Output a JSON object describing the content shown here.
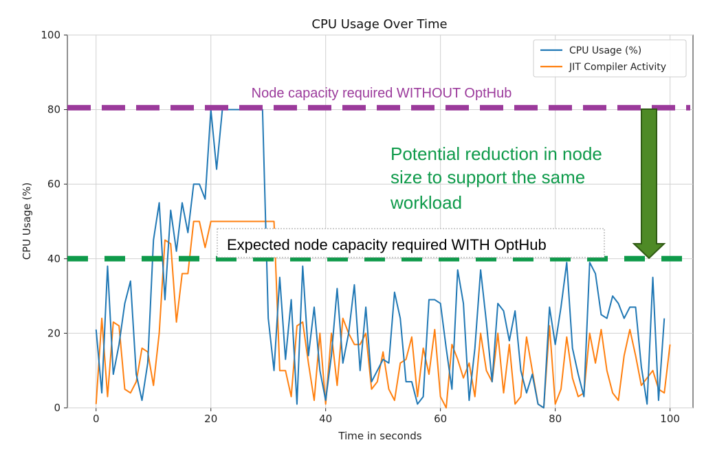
{
  "colors": {
    "cpu": "#1f77b4",
    "jit": "#ff7f0e",
    "purple": "#9b3a9b",
    "green": "#0e9a4a",
    "arrow": "#4e8a26"
  },
  "chart_data": {
    "type": "line",
    "title": "CPU Usage Over Time",
    "xlabel": "Time in seconds",
    "ylabel": "CPU Usage (%)",
    "xlim": [
      -5,
      104
    ],
    "ylim": [
      0,
      100
    ],
    "x_ticks": [
      0,
      20,
      40,
      60,
      80,
      100
    ],
    "y_ticks": [
      0,
      20,
      40,
      60,
      80,
      100
    ],
    "grid": true,
    "legend": "top-right",
    "series": [
      {
        "name": "CPU Usage (%)",
        "values": [
          21,
          4,
          38,
          9,
          17,
          28,
          34,
          9,
          2,
          12,
          45,
          55,
          29,
          53,
          42,
          55,
          47,
          60,
          60,
          56,
          80,
          64,
          80,
          80,
          80,
          80,
          80,
          80,
          80,
          80,
          24,
          10,
          35,
          13,
          29,
          1,
          38,
          14,
          27,
          10,
          2,
          14,
          32,
          12,
          20,
          33,
          10,
          27,
          7,
          10,
          13,
          12,
          31,
          24,
          7,
          7,
          1,
          3,
          29,
          29,
          28,
          16,
          5,
          37,
          28,
          2,
          16,
          37,
          23,
          7,
          28,
          26,
          18,
          26,
          10,
          4,
          9,
          1,
          0,
          27,
          17,
          27,
          39,
          16,
          9,
          3,
          39,
          36,
          25,
          24,
          30,
          28,
          24,
          27,
          27,
          11,
          1,
          35,
          2,
          24
        ]
      },
      {
        "name": "JIT Compiler Activity",
        "values": [
          1,
          24,
          3,
          23,
          22,
          5,
          4,
          7,
          16,
          15,
          6,
          20,
          45,
          44,
          23,
          36,
          36,
          50,
          50,
          43,
          50,
          50,
          50,
          50,
          50,
          50,
          50,
          50,
          50,
          50,
          50,
          50,
          10,
          10,
          3,
          22,
          23,
          12,
          2,
          20,
          1,
          20,
          6,
          24,
          20,
          17,
          17,
          20,
          5,
          7,
          15,
          5,
          2,
          12,
          13,
          19,
          3,
          16,
          9,
          21,
          3,
          0,
          17,
          13,
          8,
          12,
          3,
          20,
          10,
          7,
          20,
          4,
          17,
          1,
          3,
          19,
          10,
          1,
          0,
          22,
          1,
          5,
          19,
          8,
          3,
          4,
          20,
          12,
          21,
          10,
          4,
          2,
          14,
          21,
          14,
          6,
          8,
          10,
          5,
          4,
          17
        ]
      }
    ],
    "reference_lines": [
      {
        "y": 80.5,
        "label": "Node capacity required WITHOUT OptHub"
      },
      {
        "y": 40,
        "label": "Expected node capacity required WITH OptHub"
      }
    ]
  },
  "annotations": {
    "top_line_label": "Node capacity required WITHOUT OptHub",
    "bottom_line_label": "Expected node capacity required WITH OptHub",
    "reduction_line1": "Potential reduction in node",
    "reduction_line2": "size to support the same",
    "reduction_line3": "workload"
  }
}
